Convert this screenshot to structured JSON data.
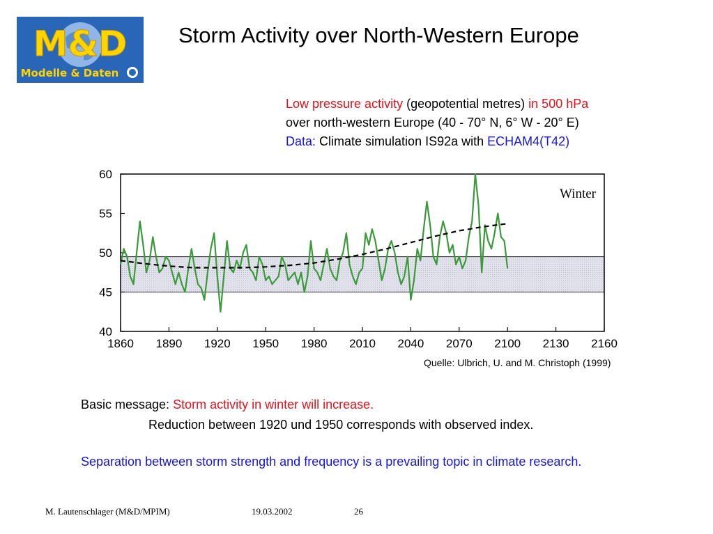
{
  "logo": {
    "main": "M&D",
    "sub": "Modelle & Daten"
  },
  "slide_title": "Storm Activity over North-Western Europe",
  "description": {
    "line1_red_a": "Low pressure activity",
    "line1_black": " (geopotential metres) ",
    "line1_red_b": "in 500 hPa",
    "line2": "over north-western Europe (40 - 70° N, 6° W - 20° E)",
    "line3_blue_a": "Data:",
    "line3_black": " Climate simulation IS92a with ",
    "line3_blue_b": "ECHAM4(T42)"
  },
  "chart_data": {
    "type": "line",
    "annotation": "Winter",
    "xlim": [
      1860,
      2160
    ],
    "ylim": [
      40,
      60
    ],
    "x_ticks": [
      "1860",
      "1890",
      "1920",
      "1950",
      "1980",
      "2010",
      "2040",
      "2070",
      "2100",
      "2130",
      "2160"
    ],
    "y_ticks": [
      "40",
      "45",
      "50",
      "55",
      "60"
    ],
    "grid": false,
    "colors": {
      "series": "#3a9a3a",
      "trend": "#000000",
      "band": "#e2e2ec"
    },
    "observed_band": [
      45,
      49.5
    ],
    "series": [
      {
        "x": [
          1860,
          1862,
          1864,
          1866,
          1868,
          1870,
          1872,
          1874,
          1876,
          1878,
          1880,
          1882,
          1884,
          1886,
          1888,
          1890,
          1892,
          1894,
          1896,
          1898,
          1900,
          1902,
          1904,
          1906,
          1908,
          1910,
          1912,
          1914,
          1916,
          1918,
          1920,
          1922,
          1924,
          1926,
          1928,
          1930,
          1932,
          1934,
          1936,
          1938,
          1940,
          1942,
          1944,
          1946,
          1948,
          1950,
          1952,
          1954,
          1956,
          1958,
          1960,
          1962,
          1964,
          1966,
          1968,
          1970,
          1972,
          1974,
          1976,
          1978,
          1980,
          1982,
          1984,
          1986,
          1988,
          1990,
          1992,
          1994,
          1996,
          1998,
          2000,
          2002,
          2004,
          2006,
          2008,
          2010,
          2012,
          2014,
          2016,
          2018,
          2020,
          2022,
          2024,
          2026,
          2028,
          2030,
          2032,
          2034,
          2036,
          2038,
          2040,
          2042,
          2044,
          2046,
          2048,
          2050,
          2052,
          2054,
          2056,
          2058,
          2060,
          2062,
          2064,
          2066,
          2068,
          2070,
          2072,
          2074,
          2076,
          2078,
          2080,
          2082,
          2084,
          2086,
          2088,
          2090,
          2092,
          2094,
          2096,
          2098,
          2100
        ],
        "values": [
          48.5,
          50.5,
          49.5,
          47.0,
          46.0,
          50.0,
          54.0,
          51.0,
          47.5,
          49.0,
          52.0,
          49.5,
          47.5,
          48.0,
          49.5,
          49.0,
          47.5,
          46.0,
          47.5,
          46.0,
          45.0,
          48.0,
          50.5,
          48.0,
          46.0,
          45.5,
          44.0,
          47.5,
          50.5,
          52.5,
          47.0,
          42.5,
          47.0,
          51.5,
          48.0,
          47.5,
          49.0,
          48.0,
          50.0,
          51.0,
          48.0,
          47.5,
          46.5,
          49.5,
          48.5,
          46.5,
          47.0,
          46.0,
          46.5,
          47.0,
          49.5,
          48.5,
          46.5,
          47.0,
          47.5,
          46.0,
          47.5,
          45.0,
          47.0,
          51.5,
          48.0,
          47.5,
          46.5,
          48.5,
          50.5,
          48.0,
          47.0,
          46.5,
          49.0,
          50.0,
          52.5,
          48.5,
          47.0,
          46.0,
          47.5,
          48.0,
          52.5,
          51.0,
          53.0,
          51.5,
          49.0,
          46.5,
          48.0,
          50.5,
          51.5,
          50.0,
          47.5,
          46.0,
          47.0,
          49.5,
          44.0,
          46.5,
          50.5,
          49.0,
          53.0,
          56.5,
          53.5,
          49.5,
          48.5,
          52.0,
          54.0,
          52.5,
          50.0,
          51.0,
          48.5,
          49.5,
          48.0,
          49.0,
          52.0,
          54.0,
          60.0,
          56.0,
          47.5,
          53.5,
          51.5,
          50.5,
          52.5,
          55.0,
          52.0,
          51.5,
          48.0
        ]
      },
      {
        "x": [
          1860,
          1875,
          1890,
          1905,
          1920,
          1935,
          1950,
          1965,
          1980,
          1995,
          2010,
          2025,
          2040,
          2055,
          2070,
          2085,
          2100
        ],
        "values": [
          49.0,
          48.6,
          48.3,
          48.1,
          48.1,
          48.1,
          48.2,
          48.4,
          48.7,
          49.2,
          49.8,
          50.5,
          51.3,
          52.1,
          52.8,
          53.3,
          53.7
        ]
      }
    ]
  },
  "source": "Quelle: Ulbrich, U. and M. Christoph (1999)",
  "message": {
    "label": "Basic message: ",
    "highlight": "Storm activity in winter will increase.",
    "line2": "Reduction between 1920 und 1950 corresponds with observed index."
  },
  "separation": "Separation between storm strength and frequency is a prevailing topic in climate research.",
  "footer": {
    "author": "M. Lautenschlager (M&D/MPIM)",
    "date": "19.03.2002",
    "page": "26"
  }
}
